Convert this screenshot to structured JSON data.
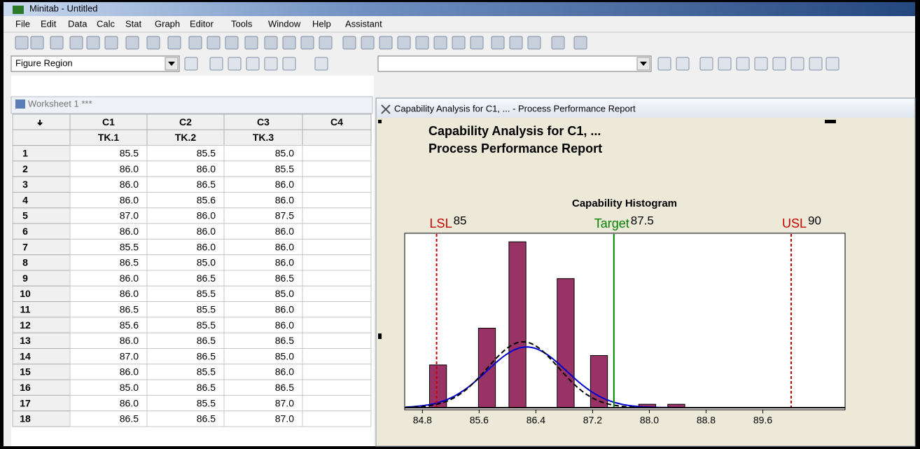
{
  "window_title": "Minitab - Untitled",
  "menu": [
    "File",
    "Edit",
    "Data",
    "Calc",
    "Stat",
    "Graph",
    "Editor",
    "Tools",
    "Window",
    "Help",
    "Assistant"
  ],
  "toolbar": {
    "dropdown": "Figure Region"
  },
  "worksheet": {
    "title": "Worksheet 1 ***",
    "columns": [
      "C1",
      "C2",
      "C3",
      "C4"
    ],
    "names": [
      "TK.1",
      "TK.2",
      "TK.3"
    ],
    "row_numbers": [
      1,
      2,
      3,
      4,
      5,
      6,
      7,
      8,
      9,
      10,
      11,
      12,
      13,
      14,
      15,
      16,
      17,
      18
    ],
    "rows": [
      [
        "85.5",
        "85.5",
        "85.0"
      ],
      [
        "86.0",
        "86.0",
        "85.5"
      ],
      [
        "86.0",
        "86.5",
        "86.0"
      ],
      [
        "86.0",
        "85.6",
        "86.0"
      ],
      [
        "87.0",
        "86.0",
        "87.5"
      ],
      [
        "86.0",
        "86.0",
        "86.0"
      ],
      [
        "85.5",
        "86.0",
        "86.0"
      ],
      [
        "86.5",
        "85.0",
        "86.0"
      ],
      [
        "86.0",
        "86.5",
        "86.5"
      ],
      [
        "86.0",
        "85.5",
        "85.0"
      ],
      [
        "86.5",
        "85.5",
        "86.0"
      ],
      [
        "85.6",
        "85.5",
        "86.0"
      ],
      [
        "86.0",
        "86.5",
        "86.5"
      ],
      [
        "87.0",
        "86.5",
        "85.0"
      ],
      [
        "86.0",
        "85.5",
        "86.0"
      ],
      [
        "85.0",
        "86.5",
        "86.5"
      ],
      [
        "86.0",
        "85.5",
        "87.0"
      ],
      [
        "86.5",
        "86.5",
        "87.0"
      ]
    ]
  },
  "report": {
    "window_title": "Capability Analysis for C1, ... - Process Performance Report",
    "title": "Capability Analysis for C1, ...",
    "subtitle": "Process Performance Report"
  },
  "chart_data": {
    "type": "histogram",
    "title": "Capability Histogram",
    "x": [
      85.02,
      85.71,
      86.14,
      86.82,
      87.29,
      87.97,
      88.38
    ],
    "values": [
      5,
      9.3,
      19.4,
      15.1,
      6.1,
      0.4,
      0.4
    ],
    "bar_width": 0.24,
    "color": "#993366",
    "xlim": [
      84.55,
      90.76
    ],
    "ylim": [
      0,
      20.4
    ],
    "xticks": [
      84.8,
      85.6,
      86.4,
      87.2,
      {
        "value": 88,
        "label": "88.0"
      },
      88.8,
      89.6
    ],
    "curves": [
      {
        "mean": 86.27,
        "sd": 0.56,
        "peak": 7.1,
        "color": "#0000cc",
        "dashed": false
      },
      {
        "mean": 86.22,
        "sd": 0.5,
        "peak": 7.7,
        "color": "#000000",
        "dashed": true
      }
    ],
    "spec_lines": [
      {
        "label": "LSL",
        "value": 85,
        "color": "#cc0000",
        "dashed": true
      },
      {
        "label": "Target",
        "value": 87.5,
        "color": "#008000",
        "dashed": false
      },
      {
        "label": "USL",
        "value": 90,
        "color": "#cc0000",
        "dashed": true
      }
    ]
  }
}
